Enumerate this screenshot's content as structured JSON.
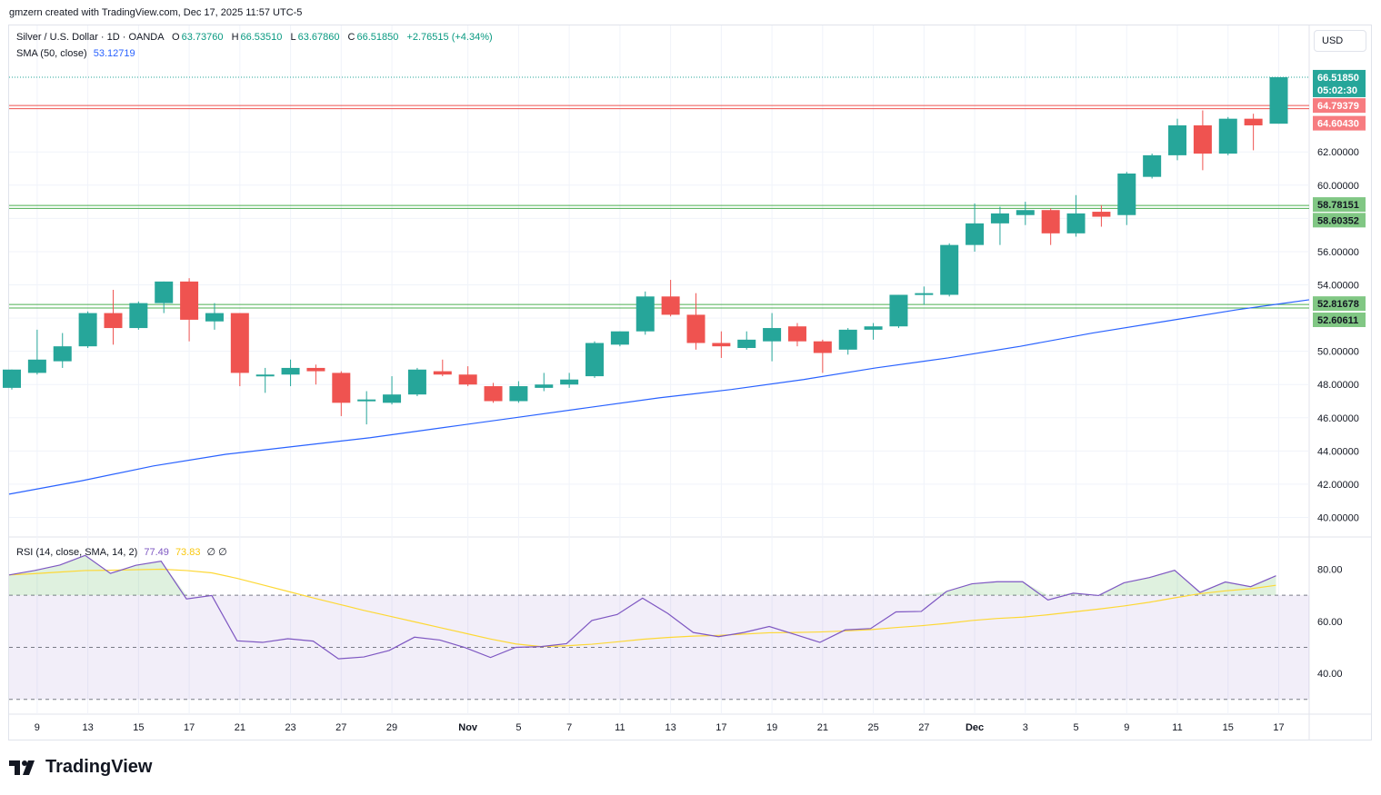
{
  "header": {
    "caption": "gmzern created with TradingView.com, Dec 17, 2025 11:57 UTC-5"
  },
  "legend": {
    "symbol": "Silver / U.S. Dollar · 1D · OANDA",
    "open_label": "O",
    "open": "63.73760",
    "high_label": "H",
    "high": "66.53510",
    "low_label": "L",
    "low": "63.67860",
    "close_label": "C",
    "close": "66.51850",
    "change": "+2.76515 (+4.34%)",
    "sma_label": "SMA (50, close)",
    "sma_value": "53.12719",
    "rsi_label": "RSI (14, close, SMA, 14, 2)",
    "rsi_value": "77.49",
    "rsi_sma_value": "73.83",
    "rsi_extra": "∅ ∅"
  },
  "currency_button": "USD",
  "price_tags": {
    "last": "66.51850",
    "countdown": "05:02:30",
    "red_hi": "64.79379",
    "red_lo": "64.60430",
    "green1_hi": "58.78151",
    "green1_lo": "58.60352",
    "green2_hi": "52.81678",
    "green2_lo": "52.60611"
  },
  "colors": {
    "up": "#26a69a",
    "down": "#ef5350",
    "sma": "#2962ff",
    "rsi": "#7e57c2",
    "rsi_sma": "#fdd835",
    "band_fill": "#7e57c2"
  },
  "brand": {
    "name": "TradingView"
  },
  "chart_data": [
    {
      "type": "candlestick",
      "title": "Silver / U.S. Dollar · 1D · OANDA",
      "ylim": [
        39.0,
        68.0
      ],
      "y_ticks": [
        "40.00000",
        "42.00000",
        "44.00000",
        "46.00000",
        "48.00000",
        "50.00000",
        "52.00000",
        "54.00000",
        "56.00000",
        "58.00000",
        "60.00000",
        "62.00000"
      ],
      "x_ticks": [
        "9",
        "13",
        "15",
        "17",
        "21",
        "23",
        "27",
        "29",
        "Nov",
        "5",
        "7",
        "11",
        "13",
        "17",
        "19",
        "21",
        "25",
        "27",
        "Dec",
        "3",
        "5",
        "9",
        "11",
        "15",
        "17"
      ],
      "x_tick_bold": [
        "Nov",
        "Dec"
      ],
      "x_tick_index": [
        1,
        2,
        3,
        4,
        5,
        6,
        7,
        8,
        9,
        10,
        11,
        12,
        13,
        14,
        15,
        16,
        17,
        18,
        19,
        20,
        21,
        22,
        23,
        24,
        25,
        26,
        27,
        28,
        29,
        30,
        31,
        32,
        33,
        34,
        35,
        36,
        37,
        38,
        39,
        40,
        41,
        42,
        43,
        44,
        45,
        46,
        47,
        48,
        49,
        50
      ],
      "x_tick_positions": [
        1,
        3,
        5,
        7,
        9,
        11,
        13,
        15,
        18,
        20,
        22,
        24,
        26,
        28,
        30,
        32,
        34,
        36,
        38,
        40,
        42,
        44,
        46,
        48,
        50
      ],
      "candles": [
        {
          "o": 47.8,
          "h": 48.9,
          "l": 47.7,
          "c": 48.9
        },
        {
          "o": 48.7,
          "h": 51.3,
          "l": 48.6,
          "c": 49.5
        },
        {
          "o": 49.4,
          "h": 51.1,
          "l": 49.0,
          "c": 50.3
        },
        {
          "o": 50.3,
          "h": 52.4,
          "l": 50.2,
          "c": 52.3
        },
        {
          "o": 52.3,
          "h": 53.7,
          "l": 50.4,
          "c": 51.4
        },
        {
          "o": 51.4,
          "h": 53.0,
          "l": 51.3,
          "c": 52.9
        },
        {
          "o": 52.9,
          "h": 54.2,
          "l": 52.3,
          "c": 54.2
        },
        {
          "o": 54.2,
          "h": 54.4,
          "l": 50.6,
          "c": 51.9
        },
        {
          "o": 51.8,
          "h": 52.9,
          "l": 51.3,
          "c": 52.3
        },
        {
          "o": 52.3,
          "h": 52.3,
          "l": 47.9,
          "c": 48.7
        },
        {
          "o": 48.6,
          "h": 49.0,
          "l": 47.5,
          "c": 48.6
        },
        {
          "o": 48.6,
          "h": 49.5,
          "l": 47.9,
          "c": 49.0
        },
        {
          "o": 49.0,
          "h": 49.2,
          "l": 48.0,
          "c": 48.8
        },
        {
          "o": 48.7,
          "h": 48.8,
          "l": 46.1,
          "c": 46.9
        },
        {
          "o": 47.0,
          "h": 47.6,
          "l": 45.6,
          "c": 47.1
        },
        {
          "o": 46.9,
          "h": 48.5,
          "l": 46.8,
          "c": 47.4
        },
        {
          "o": 47.4,
          "h": 49.0,
          "l": 47.3,
          "c": 48.9
        },
        {
          "o": 48.8,
          "h": 49.5,
          "l": 48.5,
          "c": 48.6
        },
        {
          "o": 48.6,
          "h": 49.1,
          "l": 47.9,
          "c": 48.0
        },
        {
          "o": 47.9,
          "h": 48.1,
          "l": 46.9,
          "c": 47.0
        },
        {
          "o": 47.0,
          "h": 48.2,
          "l": 46.9,
          "c": 47.9
        },
        {
          "o": 47.8,
          "h": 48.7,
          "l": 47.6,
          "c": 48.0
        },
        {
          "o": 48.0,
          "h": 48.7,
          "l": 47.8,
          "c": 48.3
        },
        {
          "o": 48.5,
          "h": 50.6,
          "l": 48.4,
          "c": 50.5
        },
        {
          "o": 50.4,
          "h": 51.2,
          "l": 50.3,
          "c": 51.2
        },
        {
          "o": 51.2,
          "h": 53.6,
          "l": 51.0,
          "c": 53.3
        },
        {
          "o": 53.3,
          "h": 54.3,
          "l": 52.1,
          "c": 52.2
        },
        {
          "o": 52.2,
          "h": 53.5,
          "l": 50.1,
          "c": 50.5
        },
        {
          "o": 50.5,
          "h": 51.2,
          "l": 49.6,
          "c": 50.3
        },
        {
          "o": 50.2,
          "h": 51.2,
          "l": 50.1,
          "c": 50.7
        },
        {
          "o": 50.6,
          "h": 52.3,
          "l": 49.4,
          "c": 51.4
        },
        {
          "o": 51.5,
          "h": 51.7,
          "l": 50.3,
          "c": 50.6
        },
        {
          "o": 50.6,
          "h": 50.7,
          "l": 48.7,
          "c": 49.9
        },
        {
          "o": 50.1,
          "h": 51.4,
          "l": 49.8,
          "c": 51.3
        },
        {
          "o": 51.3,
          "h": 51.7,
          "l": 50.7,
          "c": 51.5
        },
        {
          "o": 51.5,
          "h": 53.4,
          "l": 51.4,
          "c": 53.4
        },
        {
          "o": 53.4,
          "h": 53.9,
          "l": 52.8,
          "c": 53.5
        },
        {
          "o": 53.4,
          "h": 56.5,
          "l": 53.3,
          "c": 56.4
        },
        {
          "o": 56.4,
          "h": 58.9,
          "l": 56.0,
          "c": 57.7
        },
        {
          "o": 57.7,
          "h": 58.7,
          "l": 56.4,
          "c": 58.3
        },
        {
          "o": 58.2,
          "h": 59.0,
          "l": 57.6,
          "c": 58.5
        },
        {
          "o": 58.5,
          "h": 58.6,
          "l": 56.4,
          "c": 57.1
        },
        {
          "o": 57.1,
          "h": 59.4,
          "l": 56.9,
          "c": 58.3
        },
        {
          "o": 58.4,
          "h": 58.8,
          "l": 57.5,
          "c": 58.1
        },
        {
          "o": 58.2,
          "h": 60.8,
          "l": 57.6,
          "c": 60.7
        },
        {
          "o": 60.5,
          "h": 61.9,
          "l": 60.4,
          "c": 61.8
        },
        {
          "o": 61.8,
          "h": 64.0,
          "l": 61.5,
          "c": 63.6
        },
        {
          "o": 63.6,
          "h": 64.5,
          "l": 60.9,
          "c": 61.9
        },
        {
          "o": 61.9,
          "h": 64.1,
          "l": 61.8,
          "c": 64.0
        },
        {
          "o": 64.0,
          "h": 64.3,
          "l": 62.1,
          "c": 63.6
        },
        {
          "o": 63.7,
          "h": 66.5,
          "l": 63.7,
          "c": 66.5
        }
      ],
      "sma_series": [
        {
          "name": "SMA (50, close)",
          "points": [
            [
              0,
              41.4
            ],
            [
              4,
              42.2
            ],
            [
              8,
              43.1
            ],
            [
              12,
              43.8
            ],
            [
              16,
              44.3
            ],
            [
              20,
              44.8
            ],
            [
              24,
              45.4
            ],
            [
              28,
              46.0
            ],
            [
              32,
              46.6
            ],
            [
              36,
              47.2
            ],
            [
              40,
              47.7
            ],
            [
              44,
              48.3
            ],
            [
              48,
              49.0
            ],
            [
              52,
              49.6
            ],
            [
              56,
              50.3
            ],
            [
              60,
              51.1
            ],
            [
              64,
              51.8
            ],
            [
              68,
              52.5
            ],
            [
              72,
              53.1
            ]
          ]
        }
      ],
      "h_lines": [
        {
          "value": 64.79379,
          "color": "#ef5350"
        },
        {
          "value": 64.6043,
          "color": "#ef5350"
        },
        {
          "value": 58.78151,
          "color": "#4caf50"
        },
        {
          "value": 58.60352,
          "color": "#4caf50"
        },
        {
          "value": 52.81678,
          "color": "#4caf50"
        },
        {
          "value": 52.60611,
          "color": "#4caf50"
        }
      ]
    },
    {
      "type": "line",
      "title": "RSI (14, close, SMA, 14, 2)",
      "ylim": [
        25,
        92
      ],
      "y_ticks": [
        "40.00",
        "60.00",
        "80.00"
      ],
      "bands": [
        30,
        50,
        70
      ],
      "series": [
        {
          "name": "RSI",
          "values": [
            77.8,
            79.5,
            81.6,
            85.3,
            78.4,
            81.5,
            83.1,
            68.6,
            69.9,
            52.5,
            51.9,
            53.3,
            52.4,
            45.6,
            46.3,
            48.8,
            53.9,
            52.8,
            49.9,
            46.1,
            50.0,
            50.3,
            51.4,
            60.3,
            62.6,
            68.9,
            63.0,
            55.7,
            54.1,
            55.7,
            58.0,
            55.0,
            51.9,
            56.7,
            57.2,
            63.6,
            63.8,
            71.5,
            74.4,
            75.2,
            75.2,
            68.2,
            70.8,
            69.9,
            74.8,
            76.8,
            79.6,
            71.1,
            75.1,
            73.3,
            77.49
          ]
        },
        {
          "name": "RSI SMA",
          "values": [
            77.8,
            78.3,
            78.9,
            79.5,
            79.6,
            79.8,
            80.0,
            79.5,
            78.6,
            76.5,
            74.0,
            71.5,
            69.0,
            66.6,
            64.2,
            62.0,
            59.8,
            57.6,
            55.4,
            53.2,
            51.3,
            50.3,
            50.6,
            51.2,
            52.1,
            53.1,
            53.8,
            54.3,
            54.6,
            55.1,
            55.6,
            55.7,
            55.9,
            56.3,
            56.8,
            57.6,
            58.3,
            59.2,
            60.3,
            61.1,
            61.6,
            62.5,
            63.6,
            64.7,
            65.9,
            67.3,
            69.0,
            70.6,
            71.7,
            72.5,
            73.83
          ]
        }
      ]
    }
  ]
}
